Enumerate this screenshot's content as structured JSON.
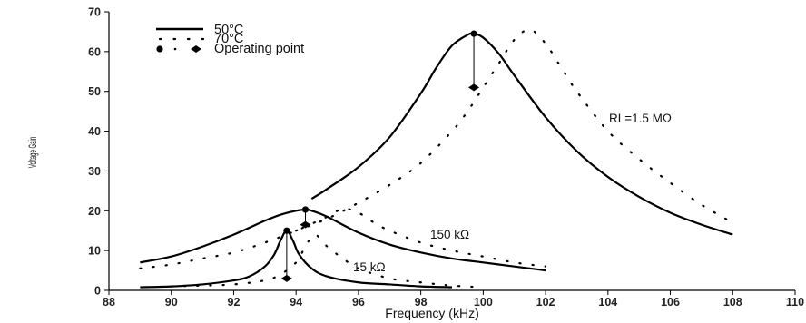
{
  "chart_data": {
    "type": "line",
    "title": "",
    "xlabel": "Frequency (kHz)",
    "ylabel": "Voltage Gain",
    "xlim": [
      88,
      110
    ],
    "ylim": [
      0,
      70
    ],
    "xticks": [
      88,
      90,
      92,
      94,
      96,
      98,
      100,
      102,
      104,
      106,
      108,
      110
    ],
    "yticks": [
      0,
      10,
      20,
      30,
      40,
      50,
      60,
      70
    ],
    "grid": false,
    "legend": {
      "placement": "top-left",
      "entries": [
        {
          "label": "50°C",
          "style": "solid"
        },
        {
          "label": "70°C",
          "style": "dotted"
        },
        {
          "label": "Operating point",
          "style": "markers"
        }
      ]
    },
    "annotations": {
      "rl_high": "RL=1.5 MΩ",
      "rl_mid": "150 kΩ",
      "rl_low": "15 kΩ"
    },
    "series": [
      {
        "load": "1.5 MΩ",
        "temp": "50°C",
        "style": "solid",
        "x": [
          94.5,
          95,
          96,
          97,
          98,
          98.5,
          99,
          99.5,
          99.7,
          100,
          100.5,
          101,
          102,
          103,
          104,
          105,
          106,
          107,
          108
        ],
        "y": [
          23,
          25.5,
          31,
          38.5,
          49.5,
          56,
          61.5,
          64.2,
          64.5,
          63.5,
          59.5,
          54,
          43.5,
          35,
          28.5,
          23.5,
          19.5,
          16.5,
          14
        ]
      },
      {
        "load": "1.5 MΩ",
        "temp": "70°C",
        "style": "dotted",
        "x": [
          94,
          95,
          96,
          97,
          98,
          99,
          99.5,
          100,
          100.5,
          101,
          101.5,
          102,
          102.5,
          103,
          104,
          105,
          106,
          107,
          108
        ],
        "y": [
          15,
          18,
          22,
          26.5,
          32,
          40,
          45,
          51,
          57,
          63,
          65.5,
          62,
          56,
          50,
          40,
          33,
          27,
          21.5,
          17
        ]
      },
      {
        "load": "150 kΩ",
        "temp": "50°C",
        "style": "solid",
        "x": [
          89,
          90,
          91,
          92,
          93,
          93.5,
          94,
          94.3,
          94.5,
          95,
          96,
          97,
          98,
          99,
          100,
          101,
          102
        ],
        "y": [
          7,
          8.5,
          11,
          14,
          17.5,
          19,
          20,
          20.3,
          20,
          18.5,
          14.5,
          11.5,
          9.5,
          8,
          7,
          6,
          5
        ]
      },
      {
        "load": "150 kΩ",
        "temp": "70°C",
        "style": "dotted",
        "x": [
          89,
          90,
          91,
          92,
          93,
          94,
          95,
          95.5,
          96,
          96.5,
          97,
          98,
          99,
          100,
          101,
          102
        ],
        "y": [
          5.5,
          6.5,
          8,
          9.5,
          12,
          15,
          18.5,
          20.5,
          19.5,
          17,
          15,
          12,
          10,
          8.5,
          7,
          6
        ]
      },
      {
        "load": "15 kΩ",
        "temp": "50°C",
        "style": "solid",
        "x": [
          89,
          90,
          91,
          92,
          92.5,
          93,
          93.3,
          93.5,
          93.7,
          93.9,
          94.1,
          94.5,
          95,
          96,
          97,
          98,
          99
        ],
        "y": [
          0.8,
          1,
          1.5,
          2.5,
          3.5,
          6,
          9,
          12.5,
          15,
          12.5,
          9,
          5.5,
          3.5,
          2,
          1.5,
          1,
          0.8
        ]
      },
      {
        "load": "15 kΩ",
        "temp": "70°C",
        "style": "dotted",
        "x": [
          90,
          91,
          92,
          93,
          93.5,
          94,
          94.3,
          94.6,
          95,
          95.5,
          96,
          97,
          98,
          99,
          100
        ],
        "y": [
          1,
          1.2,
          1.5,
          2.5,
          4,
          7,
          11,
          14,
          11,
          8,
          5.5,
          3,
          2,
          1.2,
          0.8
        ]
      }
    ],
    "operating_points": [
      {
        "load": "1.5 MΩ",
        "x": 99.7,
        "peak_y": 64.5,
        "op_y": 51
      },
      {
        "load": "150 kΩ",
        "x": 94.3,
        "peak_y": 20.3,
        "op_y": 16.5
      },
      {
        "load": "15 kΩ",
        "x": 93.7,
        "peak_y": 15,
        "op_y": 3
      }
    ]
  }
}
